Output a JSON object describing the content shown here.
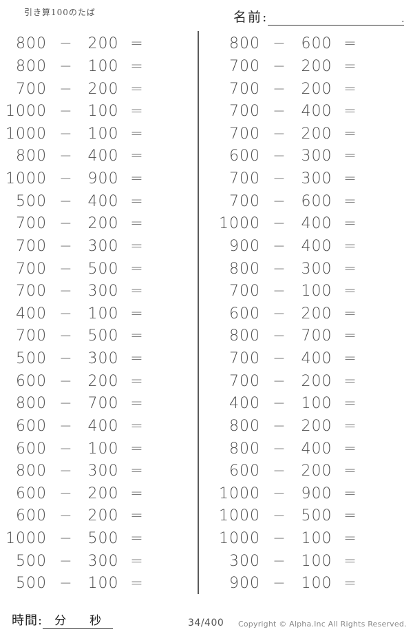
{
  "header": {
    "title": "引き算100のたば",
    "name_label": "名前:",
    "name_line_period": "."
  },
  "worksheet": {
    "operator": "−",
    "equals": "=",
    "columns": [
      {
        "problems": [
          {
            "a": "800",
            "b": "200"
          },
          {
            "a": "800",
            "b": "100"
          },
          {
            "a": "700",
            "b": "200"
          },
          {
            "a": "1000",
            "b": "100"
          },
          {
            "a": "1000",
            "b": "100"
          },
          {
            "a": "800",
            "b": "400"
          },
          {
            "a": "1000",
            "b": "900"
          },
          {
            "a": "500",
            "b": "400"
          },
          {
            "a": "700",
            "b": "200"
          },
          {
            "a": "700",
            "b": "300"
          },
          {
            "a": "700",
            "b": "500"
          },
          {
            "a": "700",
            "b": "300"
          },
          {
            "a": "400",
            "b": "100"
          },
          {
            "a": "700",
            "b": "500"
          },
          {
            "a": "500",
            "b": "300"
          },
          {
            "a": "600",
            "b": "200"
          },
          {
            "a": "800",
            "b": "700"
          },
          {
            "a": "600",
            "b": "400"
          },
          {
            "a": "600",
            "b": "100"
          },
          {
            "a": "800",
            "b": "300"
          },
          {
            "a": "600",
            "b": "200"
          },
          {
            "a": "600",
            "b": "200"
          },
          {
            "a": "1000",
            "b": "500"
          },
          {
            "a": "500",
            "b": "300"
          },
          {
            "a": "500",
            "b": "100"
          }
        ]
      },
      {
        "problems": [
          {
            "a": "800",
            "b": "600"
          },
          {
            "a": "700",
            "b": "200"
          },
          {
            "a": "700",
            "b": "200"
          },
          {
            "a": "700",
            "b": "400"
          },
          {
            "a": "700",
            "b": "200"
          },
          {
            "a": "600",
            "b": "300"
          },
          {
            "a": "700",
            "b": "300"
          },
          {
            "a": "700",
            "b": "600"
          },
          {
            "a": "1000",
            "b": "400"
          },
          {
            "a": "900",
            "b": "400"
          },
          {
            "a": "800",
            "b": "300"
          },
          {
            "a": "700",
            "b": "100"
          },
          {
            "a": "600",
            "b": "200"
          },
          {
            "a": "800",
            "b": "700"
          },
          {
            "a": "700",
            "b": "400"
          },
          {
            "a": "700",
            "b": "200"
          },
          {
            "a": "400",
            "b": "100"
          },
          {
            "a": "800",
            "b": "200"
          },
          {
            "a": "800",
            "b": "400"
          },
          {
            "a": "600",
            "b": "200"
          },
          {
            "a": "1000",
            "b": "900"
          },
          {
            "a": "1000",
            "b": "500"
          },
          {
            "a": "1000",
            "b": "100"
          },
          {
            "a": "300",
            "b": "100"
          },
          {
            "a": "900",
            "b": "100"
          }
        ]
      }
    ]
  },
  "footer": {
    "time_label": "時間:",
    "minutes_label": "分",
    "seconds_label": "秒",
    "page_number": "34/400",
    "copyright": "Copyright ©  Alpha.Inc All Rights Reserved."
  }
}
